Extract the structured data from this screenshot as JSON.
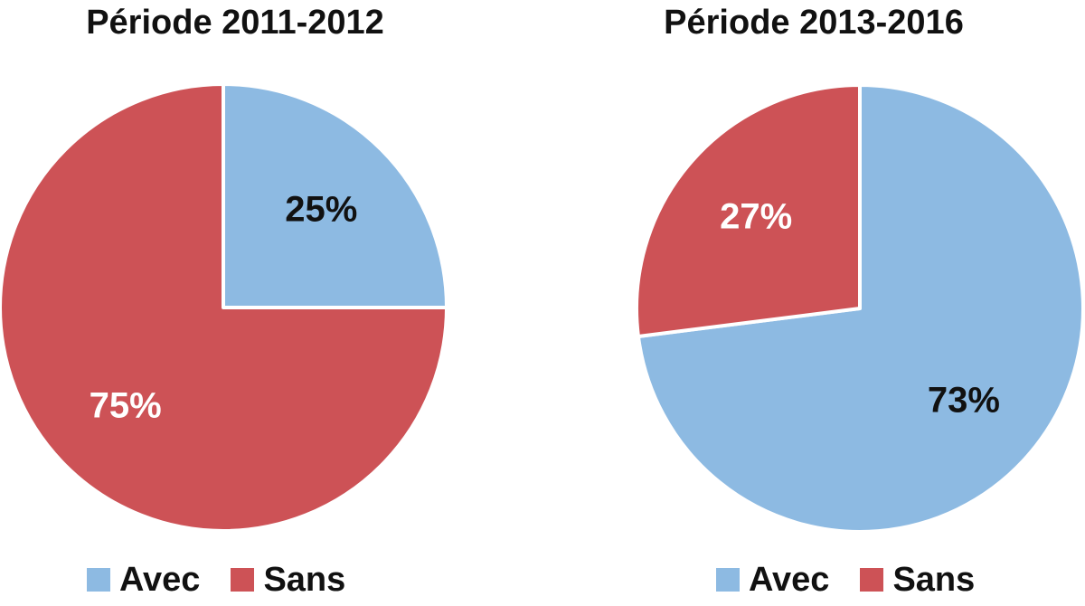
{
  "chart_data": [
    {
      "type": "pie",
      "title": "Période 2011-2012",
      "slices": [
        {
          "name": "Avec",
          "value": 25,
          "label": "25%",
          "color": "#8DBAE2"
        },
        {
          "name": "Sans",
          "value": 75,
          "label": "75%",
          "color": "#CD5256"
        }
      ],
      "legend": {
        "position": "bottom",
        "entries": [
          "Avec",
          "Sans"
        ]
      }
    },
    {
      "type": "pie",
      "title": "Période 2013-2016",
      "slices": [
        {
          "name": "Avec",
          "value": 73,
          "label": "73%",
          "color": "#8DBAE2"
        },
        {
          "name": "Sans",
          "value": 27,
          "label": "27%",
          "color": "#CD5256"
        }
      ],
      "legend": {
        "position": "bottom",
        "entries": [
          "Avec",
          "Sans"
        ]
      }
    }
  ]
}
